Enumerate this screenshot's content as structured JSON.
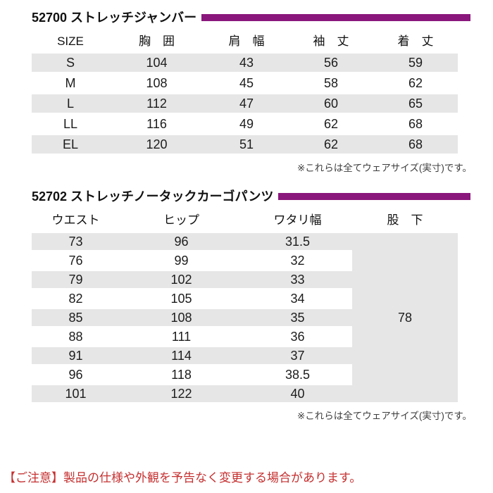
{
  "jumper_table": {
    "title": "52700 ストレッチジャンバー",
    "headers": [
      "SIZE",
      "胸　囲",
      "肩　幅",
      "袖　丈",
      "着　丈"
    ],
    "rows": [
      [
        "S",
        "104",
        "43",
        "56",
        "59"
      ],
      [
        "M",
        "108",
        "45",
        "58",
        "62"
      ],
      [
        "L",
        "112",
        "47",
        "60",
        "65"
      ],
      [
        "LL",
        "116",
        "49",
        "62",
        "68"
      ],
      [
        "EL",
        "120",
        "51",
        "62",
        "68"
      ]
    ],
    "note": "※これらは全てウェアサイズ(実寸)です。"
  },
  "pants_table": {
    "title": "52702 ストレッチノータックカーゴパンツ",
    "headers": [
      "ウエスト",
      "ヒップ",
      "ワタリ幅",
      "股　下"
    ],
    "rows": [
      [
        "73",
        "96",
        "31.5"
      ],
      [
        "76",
        "99",
        "32"
      ],
      [
        "79",
        "102",
        "33"
      ],
      [
        "82",
        "105",
        "34"
      ],
      [
        "85",
        "108",
        "35"
      ],
      [
        "88",
        "111",
        "36"
      ],
      [
        "91",
        "114",
        "37"
      ],
      [
        "96",
        "118",
        "38.5"
      ],
      [
        "101",
        "122",
        "40"
      ]
    ],
    "inseam_value": "78",
    "note": "※これらは全てウェアサイズ(実寸)です。"
  },
  "caution": "【ご注意】製品の仕様や外観を予告なく変更する場合があります。",
  "colors": {
    "accent_bar": "#8a177c",
    "row_stripe": "#e6e6e6",
    "caution_red": "#c53030"
  }
}
